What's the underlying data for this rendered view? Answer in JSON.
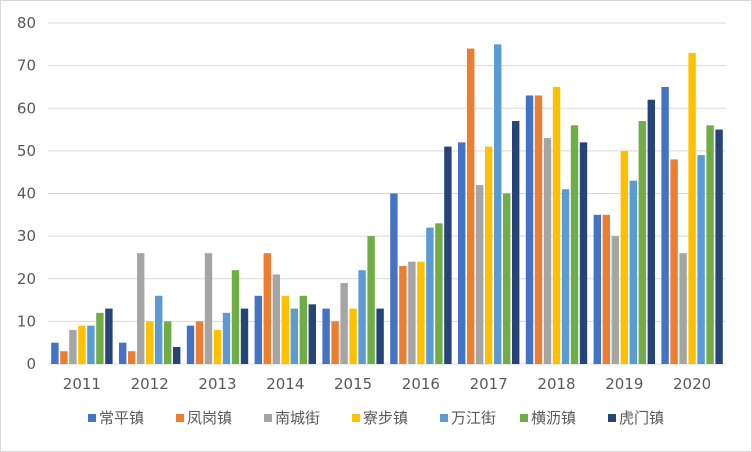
{
  "chart_data": {
    "type": "bar",
    "categories": [
      "2011",
      "2012",
      "2013",
      "2014",
      "2015",
      "2016",
      "2017",
      "2018",
      "2019",
      "2020"
    ],
    "ylim": [
      0,
      80
    ],
    "yticks": [
      0,
      10,
      20,
      30,
      40,
      50,
      60,
      70,
      80
    ],
    "grid": true,
    "legend_position": "bottom",
    "series": [
      {
        "name": "常平镇",
        "color": "#4472c4",
        "values": [
          5,
          5,
          9,
          16,
          13,
          40,
          52,
          63,
          35,
          65
        ]
      },
      {
        "name": "凤岗镇",
        "color": "#ed7d31",
        "values": [
          3,
          3,
          10,
          26,
          10,
          23,
          74,
          63,
          35,
          48
        ]
      },
      {
        "name": "南城街",
        "color": "#a5a5a5",
        "values": [
          8,
          26,
          26,
          21,
          19,
          24,
          42,
          53,
          30,
          26
        ]
      },
      {
        "name": "寮步镇",
        "color": "#ffc000",
        "values": [
          9,
          10,
          8,
          16,
          13,
          24,
          51,
          65,
          50,
          73
        ]
      },
      {
        "name": "万江街",
        "color": "#5b9bd5",
        "values": [
          9,
          16,
          12,
          13,
          22,
          32,
          75,
          41,
          43,
          49
        ]
      },
      {
        "name": "横沥镇",
        "color": "#70ad47",
        "values": [
          12,
          10,
          22,
          16,
          30,
          33,
          40,
          56,
          57,
          56
        ]
      },
      {
        "name": "虎门镇",
        "color": "#264478",
        "values": [
          13,
          4,
          13,
          14,
          13,
          51,
          57,
          52,
          62,
          55
        ]
      }
    ]
  }
}
